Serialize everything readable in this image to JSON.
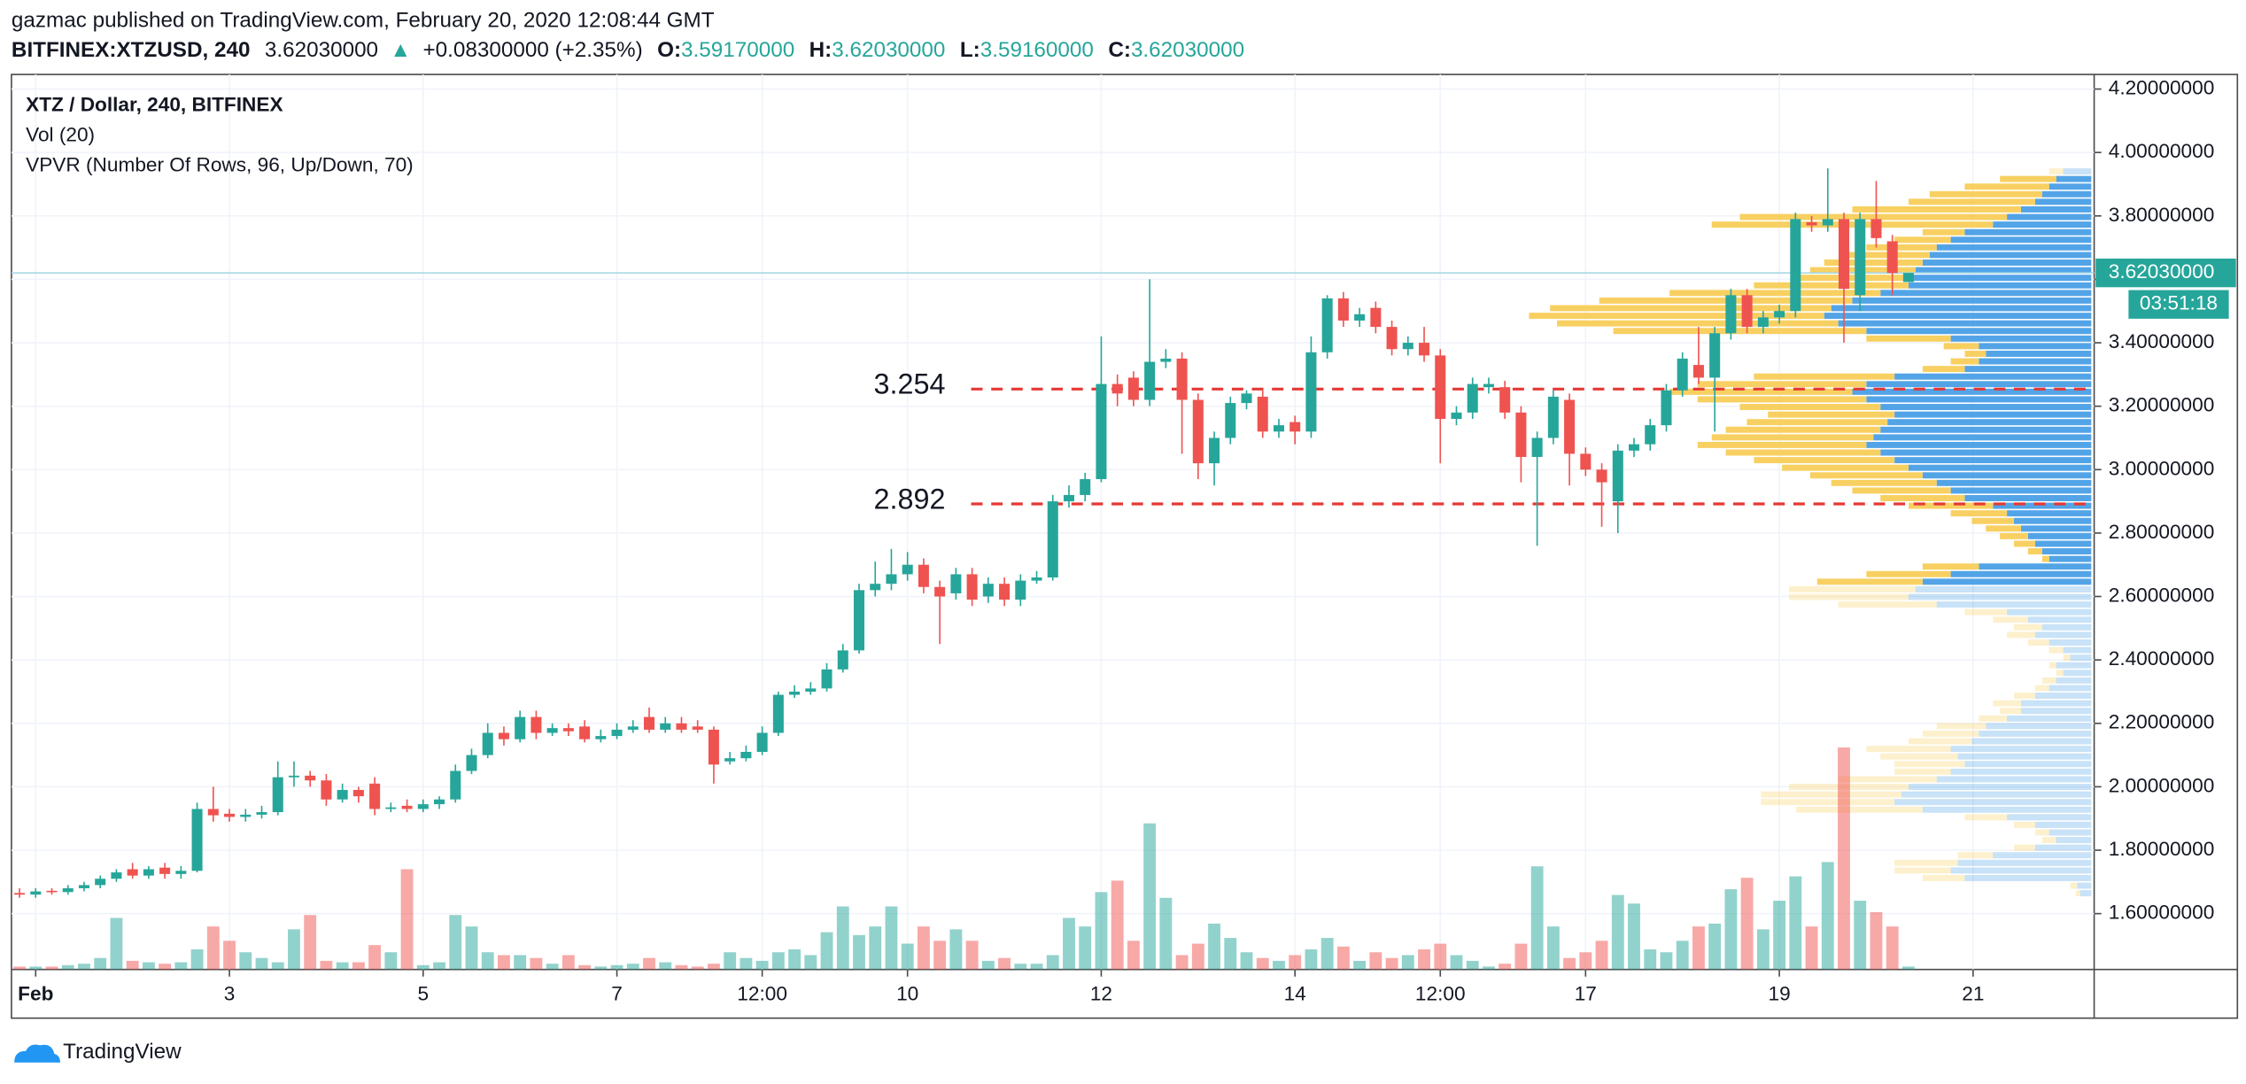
{
  "header": {
    "published": "gazmac published on TradingView.com, February 20, 2020 12:08:44 GMT",
    "symbol": "BITFINEX:XTZUSD, 240",
    "price": "3.62030000",
    "arrow": "▲",
    "change": "+0.08300000 (+2.35%)",
    "o_label": "O:",
    "o": "3.59170000",
    "h_label": "H:",
    "h": "3.62030000",
    "l_label": "L:",
    "l": "3.59160000",
    "c_label": "C:",
    "c": "3.62030000"
  },
  "chart_data": {
    "type": "candlestick",
    "legend": [
      "XTZ / Dollar, 240, BITFINEX",
      "Vol (20)",
      "VPVR (Number Of Rows, 96, Up/Down, 70)"
    ],
    "open": [
      1.665,
      1.66,
      1.672,
      1.668,
      1.68,
      1.69,
      1.71,
      1.74,
      1.72,
      1.745,
      1.725,
      1.735,
      1.93,
      1.915,
      1.905,
      1.912,
      1.92,
      2.03,
      2.035,
      2.02,
      1.96,
      1.99,
      2.01,
      1.93,
      1.94,
      1.93,
      1.945,
      1.96,
      2.05,
      2.1,
      2.17,
      2.15,
      2.22,
      2.17,
      2.185,
      2.19,
      2.15,
      2.16,
      2.18,
      2.22,
      2.18,
      2.2,
      2.19,
      2.18,
      2.08,
      2.09,
      2.11,
      2.17,
      2.29,
      2.3,
      2.31,
      2.37,
      2.43,
      2.62,
      2.64,
      2.67,
      2.7,
      2.63,
      2.61,
      2.67,
      2.6,
      2.64,
      2.59,
      2.65,
      2.66,
      2.9,
      2.92,
      2.97,
      3.27,
      3.29,
      3.22,
      3.34,
      3.35,
      3.22,
      3.02,
      3.1,
      3.21,
      3.23,
      3.12,
      3.15,
      3.12,
      3.37,
      3.54,
      3.47,
      3.51,
      3.45,
      3.38,
      3.4,
      3.36,
      3.16,
      3.18,
      3.26,
      3.26,
      3.18,
      3.04,
      3.1,
      3.22,
      3.05,
      3.0,
      2.9,
      3.06,
      3.08,
      3.14,
      3.25,
      3.33,
      3.29,
      3.43,
      3.55,
      3.45,
      3.48,
      3.5,
      3.78,
      3.77,
      3.79,
      3.55,
      3.79,
      3.72,
      3.5917
    ],
    "high": [
      1.68,
      1.68,
      1.68,
      1.69,
      1.7,
      1.72,
      1.74,
      1.76,
      1.75,
      1.76,
      1.75,
      1.95,
      2.0,
      1.93,
      1.93,
      1.94,
      2.08,
      2.08,
      2.05,
      2.04,
      2.01,
      2.0,
      2.03,
      1.95,
      1.96,
      1.96,
      1.97,
      2.07,
      2.12,
      2.2,
      2.19,
      2.24,
      2.24,
      2.2,
      2.2,
      2.21,
      2.18,
      2.2,
      2.21,
      2.25,
      2.22,
      2.22,
      2.21,
      2.19,
      2.11,
      2.13,
      2.19,
      2.3,
      2.32,
      2.33,
      2.39,
      2.45,
      2.64,
      2.71,
      2.75,
      2.74,
      2.72,
      2.65,
      2.69,
      2.69,
      2.66,
      2.66,
      2.67,
      2.68,
      2.92,
      2.95,
      2.99,
      3.42,
      3.3,
      3.31,
      3.6,
      3.38,
      3.37,
      3.24,
      3.12,
      3.23,
      3.25,
      3.25,
      3.16,
      3.17,
      3.42,
      3.55,
      3.56,
      3.51,
      3.53,
      3.47,
      3.42,
      3.45,
      3.38,
      3.2,
      3.29,
      3.29,
      3.28,
      3.2,
      3.12,
      3.25,
      3.24,
      3.07,
      3.02,
      3.08,
      3.1,
      3.16,
      3.27,
      3.37,
      3.45,
      3.45,
      3.57,
      3.57,
      3.5,
      3.52,
      3.81,
      3.8,
      3.95,
      3.81,
      3.81,
      3.91,
      3.74,
      3.6203
    ],
    "low": [
      1.65,
      1.65,
      1.66,
      1.66,
      1.67,
      1.68,
      1.7,
      1.71,
      1.71,
      1.71,
      1.71,
      1.73,
      1.89,
      1.89,
      1.89,
      1.9,
      1.91,
      2.0,
      2.0,
      1.94,
      1.95,
      1.95,
      1.91,
      1.92,
      1.92,
      1.92,
      1.93,
      1.95,
      2.04,
      2.09,
      2.13,
      2.14,
      2.15,
      2.16,
      2.16,
      2.14,
      2.14,
      2.15,
      2.17,
      2.17,
      2.17,
      2.17,
      2.17,
      2.01,
      2.07,
      2.08,
      2.1,
      2.16,
      2.28,
      2.29,
      2.3,
      2.36,
      2.42,
      2.6,
      2.62,
      2.65,
      2.61,
      2.45,
      2.59,
      2.57,
      2.58,
      2.57,
      2.57,
      2.64,
      2.65,
      2.88,
      2.9,
      2.96,
      3.2,
      3.2,
      3.2,
      3.32,
      3.05,
      2.97,
      2.95,
      3.08,
      3.19,
      3.1,
      3.1,
      3.08,
      3.1,
      3.35,
      3.45,
      3.45,
      3.43,
      3.36,
      3.36,
      3.34,
      3.02,
      3.14,
      3.16,
      3.24,
      3.16,
      2.96,
      2.76,
      3.08,
      2.95,
      2.98,
      2.82,
      2.8,
      3.04,
      3.06,
      3.12,
      3.23,
      3.27,
      3.12,
      3.41,
      3.43,
      3.43,
      3.46,
      3.48,
      3.75,
      3.75,
      3.4,
      3.5,
      3.7,
      3.55,
      3.5916
    ],
    "close": [
      1.66,
      1.67,
      1.668,
      1.68,
      1.69,
      1.71,
      1.73,
      1.72,
      1.74,
      1.725,
      1.735,
      1.93,
      1.91,
      1.905,
      1.912,
      1.92,
      2.03,
      2.035,
      2.02,
      1.96,
      1.99,
      1.97,
      1.93,
      1.935,
      1.93,
      1.945,
      1.96,
      2.05,
      2.1,
      2.17,
      2.15,
      2.22,
      2.17,
      2.185,
      2.175,
      2.15,
      2.16,
      2.18,
      2.19,
      2.18,
      2.2,
      2.18,
      2.18,
      2.07,
      2.09,
      2.11,
      2.17,
      2.29,
      2.3,
      2.31,
      2.37,
      2.43,
      2.62,
      2.64,
      2.67,
      2.7,
      2.63,
      2.6,
      2.67,
      2.59,
      2.64,
      2.59,
      2.65,
      2.66,
      2.9,
      2.92,
      2.97,
      3.27,
      3.24,
      3.22,
      3.34,
      3.35,
      3.22,
      3.02,
      3.1,
      3.21,
      3.24,
      3.12,
      3.14,
      3.12,
      3.37,
      3.54,
      3.47,
      3.49,
      3.45,
      3.38,
      3.4,
      3.36,
      3.16,
      3.18,
      3.27,
      3.27,
      3.18,
      3.04,
      3.1,
      3.23,
      3.05,
      3.0,
      2.96,
      3.06,
      3.08,
      3.14,
      3.25,
      3.35,
      3.29,
      3.43,
      3.55,
      3.45,
      3.48,
      3.5,
      3.79,
      3.77,
      3.79,
      3.57,
      3.79,
      3.73,
      3.62,
      3.6203
    ],
    "volume": [
      2,
      2,
      2,
      3,
      4,
      8,
      36,
      6,
      5,
      4,
      5,
      14,
      30,
      20,
      12,
      8,
      5,
      28,
      38,
      6,
      5,
      5,
      17,
      12,
      70,
      3,
      5,
      38,
      30,
      12,
      10,
      10,
      8,
      4,
      10,
      3,
      2,
      3,
      4,
      8,
      5,
      3,
      2,
      4,
      12,
      8,
      6,
      12,
      14,
      10,
      26,
      44,
      24,
      30,
      44,
      18,
      30,
      20,
      28,
      20,
      6,
      8,
      4,
      4,
      10,
      36,
      30,
      54,
      62,
      20,
      102,
      50,
      10,
      18,
      32,
      22,
      12,
      8,
      6,
      10,
      14,
      22,
      16,
      6,
      12,
      8,
      10,
      14,
      18,
      10,
      6,
      2,
      4,
      18,
      72,
      30,
      8,
      12,
      20,
      52,
      46,
      14,
      12,
      20,
      30,
      32,
      56,
      64,
      28,
      48,
      65,
      30,
      75,
      155,
      48,
      40,
      30,
      2
    ],
    "up_color": "#26a69a",
    "down_color": "#ef5350",
    "xlim": [
      -0.5,
      128.5
    ],
    "xticks": [
      {
        "value": 1,
        "label": "Feb"
      },
      {
        "value": 13,
        "label": "3"
      },
      {
        "value": 25,
        "label": "5"
      },
      {
        "value": 37,
        "label": "7"
      },
      {
        "value": 46,
        "label": "12:00"
      },
      {
        "value": 55,
        "label": "10"
      },
      {
        "value": 67,
        "label": "12"
      },
      {
        "value": 79,
        "label": "14"
      },
      {
        "value": 88,
        "label": "12:00"
      },
      {
        "value": 97,
        "label": "17"
      },
      {
        "value": 109,
        "label": "19"
      },
      {
        "value": 121,
        "label": "21"
      }
    ],
    "ylim": [
      1.424,
      4.246
    ],
    "yticks": [
      {
        "value": 1.6,
        "label": "1.60000000"
      },
      {
        "value": 1.8,
        "label": "1.80000000"
      },
      {
        "value": 2.0,
        "label": "2.00000000"
      },
      {
        "value": 2.2,
        "label": "2.20000000"
      },
      {
        "value": 2.4,
        "label": "2.40000000"
      },
      {
        "value": 2.6,
        "label": "2.60000000"
      },
      {
        "value": 2.8,
        "label": "2.80000000"
      },
      {
        "value": 3.0,
        "label": "3.00000000"
      },
      {
        "value": 3.2,
        "label": "3.20000000"
      },
      {
        "value": 3.4,
        "label": "3.40000000"
      },
      {
        "value": 3.6,
        "label": "3.60000000"
      },
      {
        "value": 3.8,
        "label": "3.80000000"
      },
      {
        "value": 4.0,
        "label": "4.00000000"
      },
      {
        "value": 4.2,
        "label": "4.20000000"
      }
    ],
    "grid": true,
    "levels": [
      3.254,
      2.892
    ],
    "level_color": "#e53935",
    "last_price": {
      "value": 3.6203,
      "label": "3.62030000"
    },
    "last_line_color": "#a8d8e6",
    "countdown": "03:51:18",
    "vpvr": {
      "rows": 96,
      "value_area": 70,
      "up_color": "#4a9fe6",
      "down_color": "#f8cd5a",
      "up": [
        8,
        10,
        90,
        100,
        95,
        70,
        40,
        25,
        30,
        40,
        60,
        120,
        140,
        135,
        130,
        110,
        100,
        90,
        95,
        100,
        85,
        80,
        75,
        60,
        50,
        50,
        40,
        30,
        25,
        20,
        25,
        15,
        20,
        30,
        40,
        35,
        45,
        60,
        110,
        130,
        125,
        120,
        100,
        80,
        30,
        35,
        40,
        45,
        50,
        55,
        60,
        70,
        90,
        100,
        110,
        120,
        130,
        140,
        150,
        160,
        155,
        150,
        145,
        140,
        150,
        160,
        170,
        160,
        140,
        90,
        80,
        75,
        80,
        100,
        160,
        180,
        190,
        185,
        170,
        150,
        130,
        130,
        125,
        120,
        115,
        110,
        100,
        90,
        70,
        60,
        50,
        40,
        35,
        30,
        25,
        20
      ],
      "down": [
        3,
        5,
        30,
        40,
        45,
        25,
        15,
        10,
        10,
        15,
        30,
        90,
        95,
        100,
        85,
        70,
        40,
        50,
        55,
        60,
        45,
        40,
        35,
        20,
        15,
        20,
        15,
        10,
        10,
        5,
        5,
        5,
        10,
        15,
        20,
        20,
        25,
        30,
        70,
        85,
        90,
        75,
        60,
        40,
        5,
        10,
        15,
        20,
        25,
        30,
        40,
        60,
        60,
        70,
        75,
        80,
        90,
        100,
        110,
        120,
        115,
        110,
        100,
        90,
        100,
        120,
        130,
        120,
        100,
        30,
        20,
        15,
        25,
        60,
        180,
        200,
        210,
        200,
        180,
        150,
        110,
        80,
        75,
        70,
        60,
        50,
        40,
        30,
        200,
        190,
        120,
        90,
        80,
        60,
        40,
        10
      ]
    }
  },
  "footer": {
    "brand": "TradingView"
  }
}
